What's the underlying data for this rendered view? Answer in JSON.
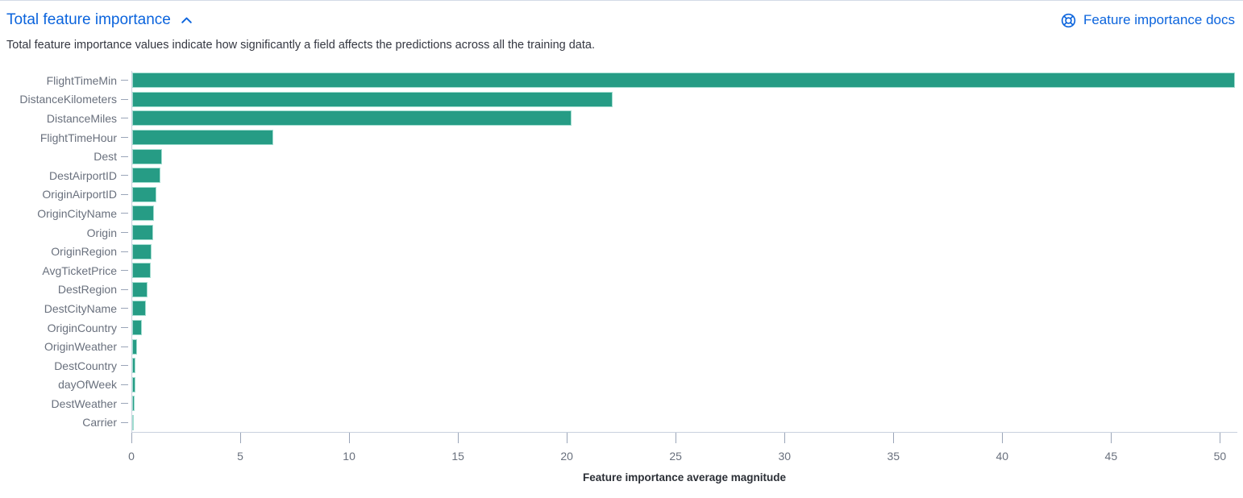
{
  "panel": {
    "title": "Total feature importance",
    "docs_link": "Feature importance docs",
    "description": "Total feature importance values indicate how significantly a field affects the predictions across all the training data."
  },
  "colors": {
    "accent_blue": "#0b64dd",
    "bar_teal": "#269c85",
    "bar_outline": "#a2ddd0",
    "axis_line": "#c9d1de",
    "tick_mark": "#9aa5b8",
    "axis_text": "#69707d",
    "body_text": "#343741"
  },
  "icons": {
    "collapse": "chevron-up-icon",
    "docs": "documentation-life-ring-icon"
  },
  "chart_data": {
    "type": "bar",
    "orientation": "horizontal",
    "title": "",
    "xlabel": "Feature importance average magnitude",
    "ylabel": "",
    "grid": false,
    "legend": false,
    "xlim": [
      0,
      50.8
    ],
    "x_ticks": [
      0,
      5,
      10,
      15,
      20,
      25,
      30,
      35,
      40,
      45,
      50
    ],
    "categories": [
      "FlightTimeMin",
      "DistanceKilometers",
      "DistanceMiles",
      "FlightTimeHour",
      "Dest",
      "DestAirportID",
      "OriginAirportID",
      "OriginCityName",
      "Origin",
      "OriginRegion",
      "AvgTicketPrice",
      "DestRegion",
      "DestCityName",
      "OriginCountry",
      "OriginWeather",
      "DestCountry",
      "dayOfWeek",
      "DestWeather",
      "Carrier"
    ],
    "values": [
      50.7,
      22.1,
      20.2,
      6.5,
      1.37,
      1.3,
      1.11,
      1.0,
      0.96,
      0.89,
      0.85,
      0.7,
      0.63,
      0.44,
      0.22,
      0.16,
      0.15,
      0.12,
      0.04
    ],
    "bar_color": "#269c85"
  }
}
